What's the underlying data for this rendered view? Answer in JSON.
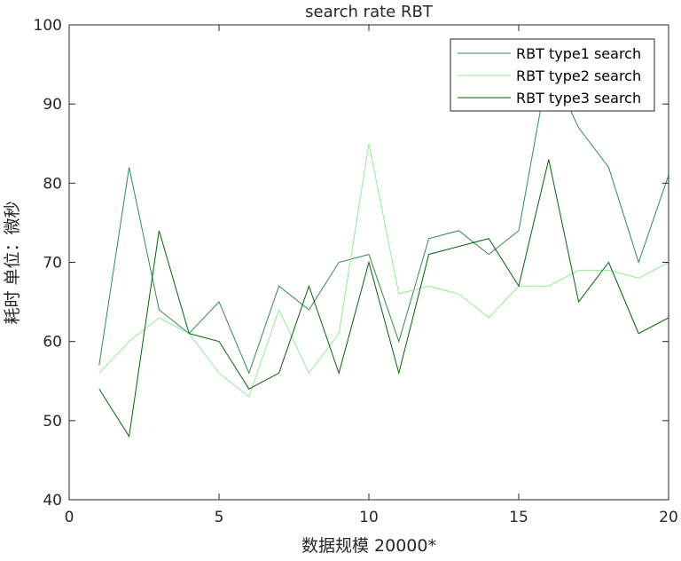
{
  "chart_data": {
    "type": "line",
    "title": "search rate  RBT",
    "xlabel": "数据规模 20000*",
    "ylabel": "耗时 单位：微秒",
    "xlim": [
      0,
      20
    ],
    "ylim": [
      40,
      100
    ],
    "xticks": [
      0,
      5,
      10,
      15,
      20
    ],
    "yticks": [
      40,
      50,
      60,
      70,
      80,
      90,
      100
    ],
    "grid": false,
    "legend_position": "top-right",
    "x": [
      1,
      2,
      3,
      4,
      5,
      6,
      7,
      8,
      9,
      10,
      11,
      12,
      13,
      14,
      15,
      16,
      17,
      18,
      19,
      20
    ],
    "series": [
      {
        "name": "RBT type1 search",
        "color": "#2E8B57",
        "values": [
          57,
          82,
          64,
          61,
          65,
          56,
          67,
          64,
          70,
          71,
          60,
          73,
          74,
          71,
          74,
          95,
          87,
          82,
          70,
          81
        ]
      },
      {
        "name": "RBT type2 search",
        "color": "#90EE90",
        "values": [
          56,
          60,
          63,
          61,
          56,
          53,
          64,
          56,
          61,
          85,
          66,
          67,
          66,
          63,
          67,
          67,
          69,
          69,
          68,
          70
        ]
      },
      {
        "name": "RBT type3 search",
        "color": "#006400",
        "values": [
          54,
          48,
          74,
          61,
          60,
          54,
          56,
          67,
          56,
          70,
          56,
          71,
          72,
          73,
          67,
          83,
          65,
          70,
          61,
          63
        ]
      }
    ]
  }
}
